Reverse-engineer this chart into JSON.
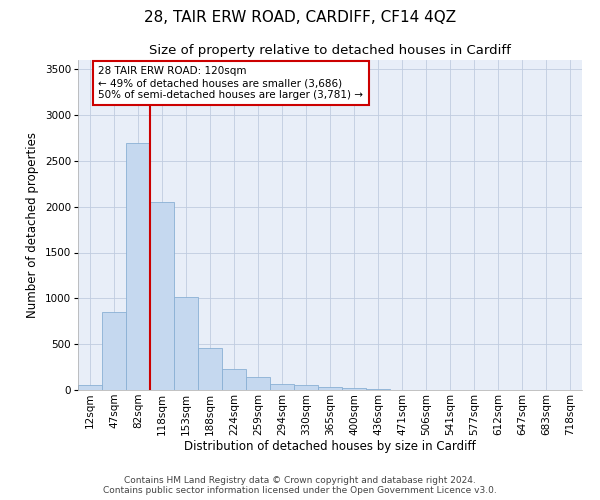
{
  "title": "28, TAIR ERW ROAD, CARDIFF, CF14 4QZ",
  "subtitle": "Size of property relative to detached houses in Cardiff",
  "xlabel": "Distribution of detached houses by size in Cardiff",
  "ylabel": "Number of detached properties",
  "categories": [
    "12sqm",
    "47sqm",
    "82sqm",
    "118sqm",
    "153sqm",
    "188sqm",
    "224sqm",
    "259sqm",
    "294sqm",
    "330sqm",
    "365sqm",
    "400sqm",
    "436sqm",
    "471sqm",
    "506sqm",
    "541sqm",
    "577sqm",
    "612sqm",
    "647sqm",
    "683sqm",
    "718sqm"
  ],
  "values": [
    55,
    855,
    2700,
    2050,
    1010,
    455,
    230,
    145,
    65,
    50,
    35,
    25,
    15,
    0,
    0,
    0,
    0,
    0,
    0,
    0,
    0
  ],
  "bar_color": "#c5d8ef",
  "bar_edge_color": "#8ab0d4",
  "vline_x": 2.5,
  "vline_color": "#cc0000",
  "annotation_text": "28 TAIR ERW ROAD: 120sqm\n← 49% of detached houses are smaller (3,686)\n50% of semi-detached houses are larger (3,781) →",
  "annotation_box_color": "#ffffff",
  "annotation_box_edge": "#cc0000",
  "ylim": [
    0,
    3600
  ],
  "yticks": [
    0,
    500,
    1000,
    1500,
    2000,
    2500,
    3000,
    3500
  ],
  "footer": "Contains HM Land Registry data © Crown copyright and database right 2024.\nContains public sector information licensed under the Open Government Licence v3.0.",
  "plot_bg_color": "#e8eef8",
  "title_fontsize": 11,
  "subtitle_fontsize": 9.5,
  "axis_label_fontsize": 8.5,
  "tick_fontsize": 7.5,
  "footer_fontsize": 6.5,
  "annotation_fontsize": 7.5
}
